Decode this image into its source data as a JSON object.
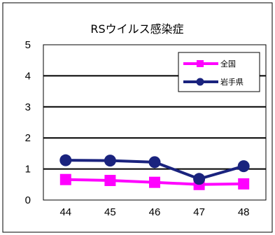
{
  "chart_data": {
    "type": "line",
    "title": "RSウイルス感染症",
    "xlabel": "",
    "ylabel": "",
    "categories": [
      "44",
      "45",
      "46",
      "47",
      "48"
    ],
    "ylim": [
      0,
      5
    ],
    "yticks": [
      "0",
      "1",
      "2",
      "3",
      "4",
      "5"
    ],
    "grid": true,
    "legend": "top-right",
    "series": [
      {
        "name": "全国",
        "values": [
          0.66,
          0.63,
          0.57,
          0.5,
          0.52
        ],
        "color": "#ff00ff",
        "marker": "square"
      },
      {
        "name": "岩手県",
        "values": [
          1.28,
          1.27,
          1.22,
          0.68,
          1.09
        ],
        "color": "#1a237e",
        "marker": "circle"
      }
    ]
  }
}
